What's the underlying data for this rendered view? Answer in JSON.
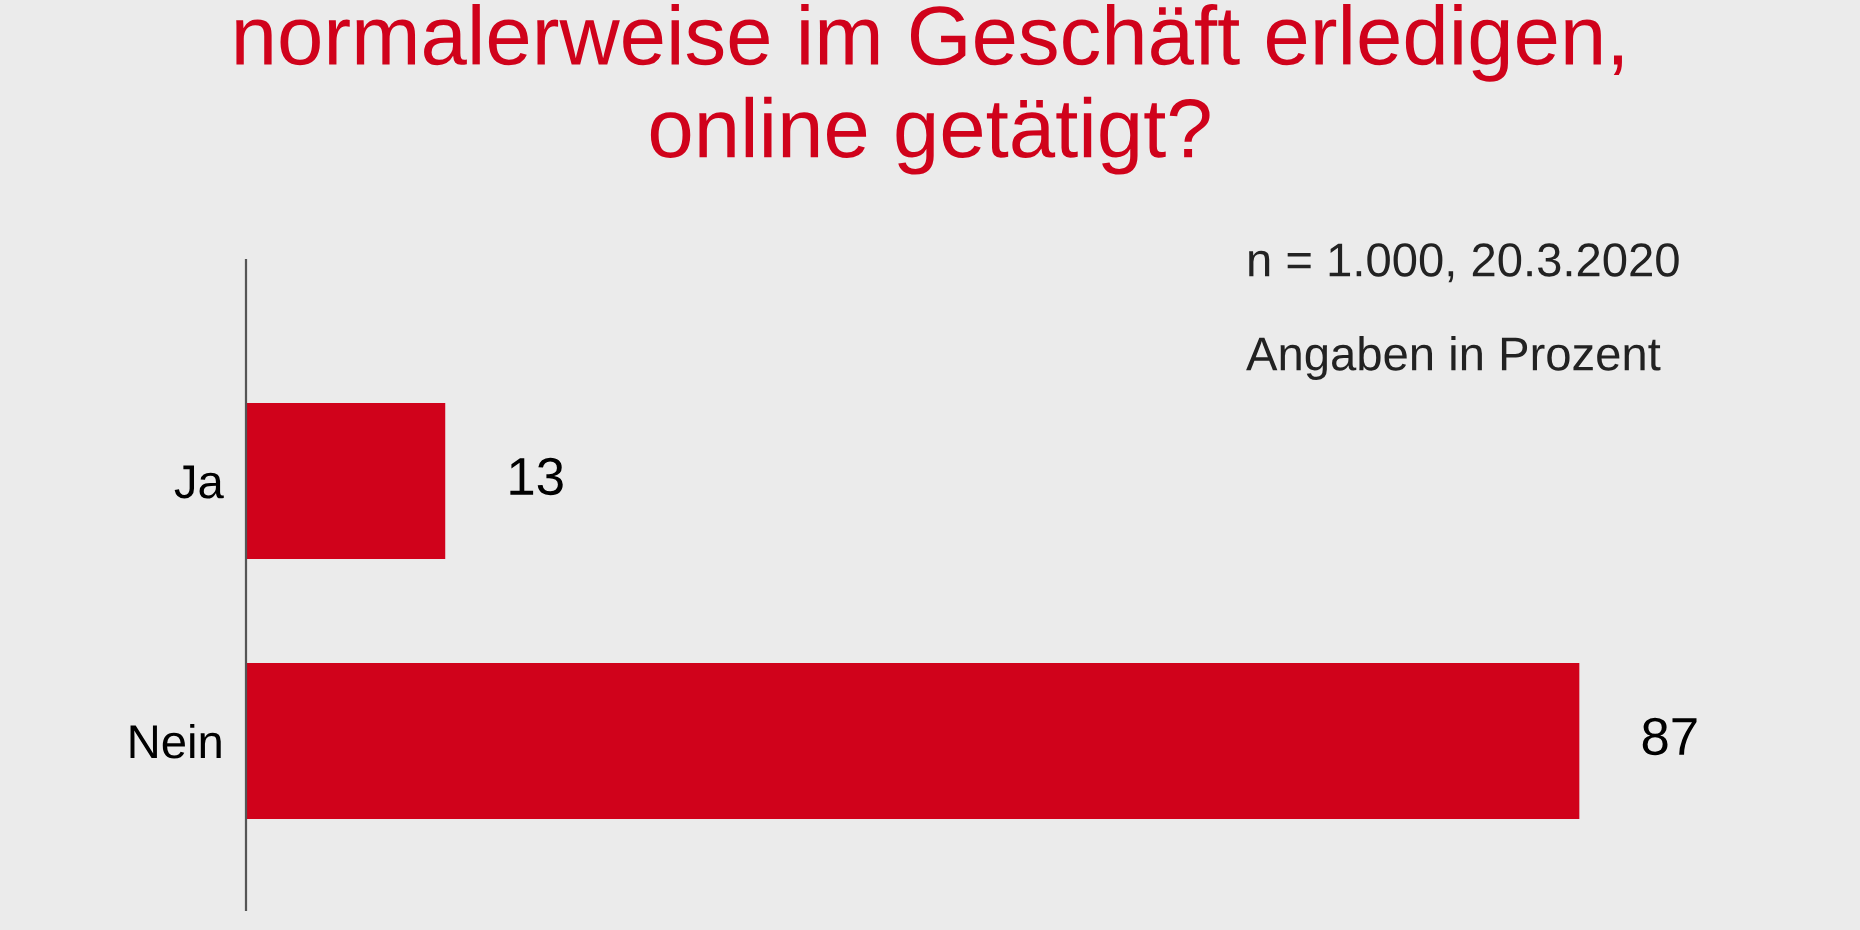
{
  "chart_data": {
    "type": "bar",
    "orientation": "horizontal",
    "title": "normalerweise im Geschäft erledigen,\nonline getätigt?",
    "categories": [
      "Ja",
      "Nein"
    ],
    "values": [
      13,
      87
    ],
    "color": "#d0021b",
    "data_labels": true,
    "grid": false,
    "legend": false,
    "annotations": [
      "n = 1.000, 20.3.2020",
      "Angaben in Prozent"
    ]
  }
}
